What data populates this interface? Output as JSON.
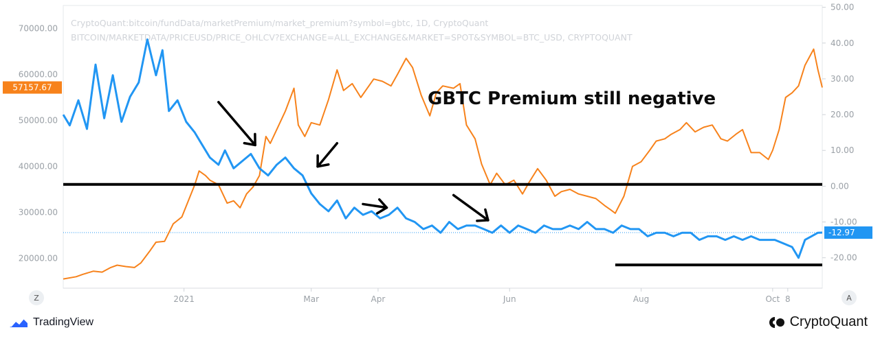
{
  "source_lines": [
    "CryptoQuant:bitcoin/fundData/marketPremium/market_premium?symbol=gbtc, 1D, CryptoQuant",
    "BITCOIN/MARKETDATA/PRICEUSD/PRICE_OHLCV?EXCHANGE=ALL_EXCHANGE&MARKET=SPOT&SYMBOL=BTC_USD, CRYPTOQUANT"
  ],
  "annotation_text": "GBTC Premium still negative",
  "footer": {
    "tradingview_label": "TradingView",
    "cryptoquant_label": "CryptoQuant"
  },
  "buttons": {
    "left": "Z",
    "right": "A"
  },
  "colors": {
    "price": "#f7821b",
    "premium": "#2196f3",
    "axis_text": "#9aa0a6",
    "annotation": "#000000"
  },
  "chart_data": {
    "type": "line",
    "x_start": "2020-11-06",
    "x_end": "2021-10-24",
    "x_ticks": [
      {
        "date": "2021-01-01",
        "label": "2021"
      },
      {
        "date": "2021-03-01",
        "label": "Mar"
      },
      {
        "date": "2021-04-01",
        "label": "Apr"
      },
      {
        "date": "2021-06-01",
        "label": "Jun"
      },
      {
        "date": "2021-08-01",
        "label": "Aug"
      },
      {
        "date": "2021-10-01",
        "label": "Oct"
      },
      {
        "date": "2021-10-08",
        "label": "8"
      }
    ],
    "y_left": {
      "min": 13500,
      "max": 75000,
      "ticks": [
        20000,
        30000,
        40000,
        50000,
        60000,
        70000
      ],
      "tick_labels": [
        "20000.00",
        "30000.00",
        "40000.00",
        "50000.00",
        "60000.00",
        "70000.00"
      ],
      "last_label": "57157.67",
      "last_value": 57157.67
    },
    "y_right": {
      "min": -28.5,
      "max": 50.5,
      "ticks": [
        -20,
        -10,
        0,
        10,
        20,
        30,
        40,
        50
      ],
      "tick_labels": [
        "-20.00",
        "-10.00",
        "0.00",
        "10.00",
        "20.00",
        "30.00",
        "40.00",
        "50.00"
      ],
      "last_label": "-12.97",
      "last_value": -12.97
    },
    "series": [
      {
        "name": "",
        "axis": "left",
        "color": "#f7821b",
        "x": [
          "2020-11-06",
          "2020-11-12",
          "2020-11-15",
          "2020-11-20",
          "2020-11-24",
          "2020-11-28",
          "2020-12-01",
          "2020-12-05",
          "2020-12-09",
          "2020-12-12",
          "2020-12-16",
          "2020-12-19",
          "2020-12-23",
          "2020-12-27",
          "2020-12-31",
          "2021-01-03",
          "2021-01-06",
          "2021-01-08",
          "2021-01-11",
          "2021-01-13",
          "2021-01-17",
          "2021-01-21",
          "2021-01-24",
          "2021-01-27",
          "2021-01-30",
          "2021-02-02",
          "2021-02-05",
          "2021-02-08",
          "2021-02-10",
          "2021-02-13",
          "2021-02-17",
          "2021-02-21",
          "2021-02-23",
          "2021-02-26",
          "2021-03-01",
          "2021-03-05",
          "2021-03-09",
          "2021-03-13",
          "2021-03-16",
          "2021-03-20",
          "2021-03-24",
          "2021-03-27",
          "2021-03-30",
          "2021-04-03",
          "2021-04-07",
          "2021-04-10",
          "2021-04-14",
          "2021-04-17",
          "2021-04-21",
          "2021-04-25",
          "2021-04-28",
          "2021-05-01",
          "2021-05-06",
          "2021-05-09",
          "2021-05-12",
          "2021-05-16",
          "2021-05-19",
          "2021-05-23",
          "2021-05-26",
          "2021-05-30",
          "2021-06-03",
          "2021-06-07",
          "2021-06-10",
          "2021-06-14",
          "2021-06-18",
          "2021-06-22",
          "2021-06-25",
          "2021-06-29",
          "2021-07-03",
          "2021-07-07",
          "2021-07-11",
          "2021-07-15",
          "2021-07-18",
          "2021-07-20",
          "2021-07-24",
          "2021-07-28",
          "2021-08-01",
          "2021-08-05",
          "2021-08-08",
          "2021-08-12",
          "2021-08-15",
          "2021-08-19",
          "2021-08-22",
          "2021-08-26",
          "2021-08-30",
          "2021-09-03",
          "2021-09-07",
          "2021-09-10",
          "2021-09-14",
          "2021-09-17",
          "2021-09-21",
          "2021-09-25",
          "2021-09-29",
          "2021-10-01",
          "2021-10-04",
          "2021-10-07",
          "2021-10-10",
          "2021-10-13",
          "2021-10-16",
          "2021-10-20",
          "2021-10-22",
          "2021-10-24"
        ],
        "values": [
          15500,
          16000,
          16500,
          17200,
          17000,
          18000,
          18500,
          18200,
          18000,
          19000,
          21500,
          23500,
          23700,
          27500,
          29000,
          32500,
          36000,
          39000,
          38000,
          37000,
          36000,
          32000,
          32500,
          31000,
          34000,
          35500,
          38000,
          46500,
          45000,
          48000,
          52000,
          57000,
          49000,
          46500,
          49500,
          49000,
          54500,
          61000,
          56500,
          58000,
          55000,
          57000,
          59000,
          58500,
          57500,
          60000,
          63500,
          61500,
          55500,
          51000,
          56000,
          57500,
          57000,
          58000,
          49000,
          46000,
          40500,
          36000,
          38500,
          36000,
          37000,
          34000,
          36500,
          39500,
          37000,
          33500,
          34500,
          35000,
          34000,
          33500,
          33000,
          31500,
          30500,
          29800,
          33500,
          40000,
          41000,
          43500,
          45500,
          46000,
          47000,
          48000,
          49500,
          47500,
          48500,
          49000,
          46000,
          45500,
          47000,
          48000,
          43000,
          43000,
          41500,
          43500,
          48000,
          55000,
          56000,
          57500,
          62000,
          65500,
          61000,
          57157.67
        ]
      },
      {
        "name": "",
        "axis": "right",
        "color": "#2196f3",
        "x": [
          "2020-11-06",
          "2020-11-09",
          "2020-11-13",
          "2020-11-17",
          "2020-11-21",
          "2020-11-25",
          "2020-11-29",
          "2020-12-03",
          "2020-12-07",
          "2020-12-11",
          "2020-12-15",
          "2020-12-19",
          "2020-12-22",
          "2020-12-25",
          "2020-12-29",
          "2021-01-02",
          "2021-01-06",
          "2021-01-09",
          "2021-01-13",
          "2021-01-17",
          "2021-01-20",
          "2021-01-24",
          "2021-01-28",
          "2021-02-01",
          "2021-02-05",
          "2021-02-09",
          "2021-02-13",
          "2021-02-17",
          "2021-02-21",
          "2021-02-25",
          "2021-03-01",
          "2021-03-05",
          "2021-03-09",
          "2021-03-13",
          "2021-03-17",
          "2021-03-21",
          "2021-03-25",
          "2021-03-29",
          "2021-04-02",
          "2021-04-06",
          "2021-04-10",
          "2021-04-14",
          "2021-04-18",
          "2021-04-22",
          "2021-04-26",
          "2021-04-30",
          "2021-05-04",
          "2021-05-08",
          "2021-05-12",
          "2021-05-16",
          "2021-05-20",
          "2021-05-24",
          "2021-05-28",
          "2021-06-01",
          "2021-06-05",
          "2021-06-09",
          "2021-06-13",
          "2021-06-17",
          "2021-06-21",
          "2021-06-25",
          "2021-06-29",
          "2021-07-03",
          "2021-07-07",
          "2021-07-11",
          "2021-07-15",
          "2021-07-19",
          "2021-07-23",
          "2021-07-27",
          "2021-07-31",
          "2021-08-04",
          "2021-08-08",
          "2021-08-12",
          "2021-08-16",
          "2021-08-20",
          "2021-08-24",
          "2021-08-28",
          "2021-09-01",
          "2021-09-05",
          "2021-09-09",
          "2021-09-13",
          "2021-09-17",
          "2021-09-21",
          "2021-09-25",
          "2021-09-29",
          "2021-10-02",
          "2021-10-06",
          "2021-10-10",
          "2021-10-13",
          "2021-10-16",
          "2021-10-19",
          "2021-10-22",
          "2021-10-24"
        ],
        "values": [
          20,
          17,
          24,
          16,
          34,
          19,
          31,
          18,
          25,
          29,
          41,
          31,
          38,
          21,
          24,
          18,
          15,
          12,
          8,
          6,
          10,
          5,
          7,
          9,
          5,
          3,
          6,
          8,
          5,
          3,
          -2,
          -5,
          -7,
          -4,
          -9,
          -6,
          -8,
          -7,
          -9,
          -8,
          -6,
          -9,
          -10,
          -12,
          -11,
          -13,
          -10,
          -12,
          -11,
          -11,
          -12,
          -13,
          -11,
          -13,
          -11,
          -12,
          -13,
          -11,
          -12,
          -12,
          -11,
          -12,
          -10,
          -12,
          -12,
          -13,
          -11,
          -12,
          -12,
          -14,
          -13,
          -13,
          -14,
          -13,
          -13,
          -15,
          -14,
          -14,
          -15,
          -14,
          -15,
          -14,
          -15,
          -15,
          -15,
          -16,
          -17,
          -20,
          -15,
          -14,
          -13,
          -12.97
        ]
      }
    ],
    "horizontal_levels": [
      {
        "axis": "right",
        "value": 0.5,
        "x_from": "2020-11-06",
        "x_to": "2021-10-24"
      },
      {
        "axis": "right",
        "value": -22,
        "x_from": "2021-07-20",
        "x_to": "2021-10-24"
      }
    ],
    "arrows": [
      {
        "from": [
          "2021-01-17",
          23.5
        ],
        "to": [
          "2021-02-03",
          11.5
        ]
      },
      {
        "from": [
          "2021-03-13",
          12.0
        ],
        "to": [
          "2021-03-04",
          5.5
        ]
      },
      {
        "from": [
          "2021-03-25",
          -5.0
        ],
        "to": [
          "2021-04-05",
          -6.0
        ]
      },
      {
        "from": [
          "2021-05-06",
          -2.5
        ],
        "to": [
          "2021-05-22",
          -9.5
        ]
      }
    ]
  }
}
